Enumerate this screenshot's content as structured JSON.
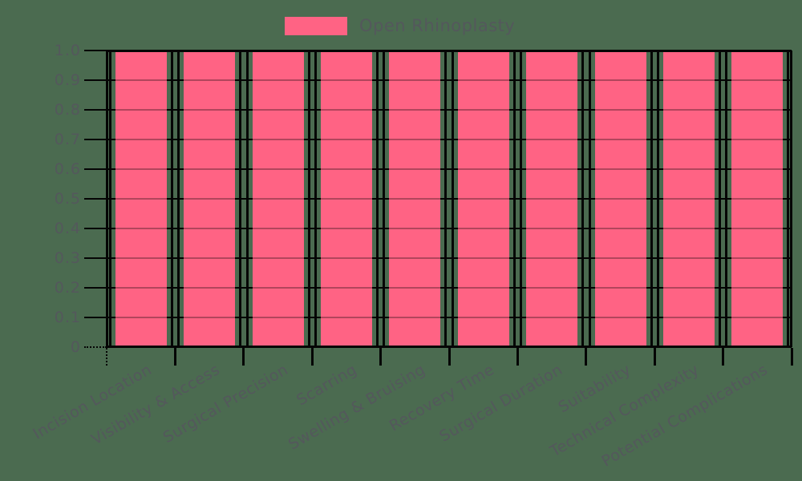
{
  "legend": {
    "position": "top-center",
    "items": [
      {
        "label": "Open Rhinoplasty",
        "color": "#FF6384"
      }
    ]
  },
  "chart_data": {
    "type": "bar",
    "title": "",
    "xlabel": "",
    "ylabel": "",
    "categories": [
      "Incision Location",
      "Visibility & Access",
      "Surgical Precision",
      "Scarring",
      "Swelling & Bruising",
      "Recovery Time",
      "Surgical Duration",
      "Suitability",
      "Technical Complexity",
      "Potential Complications"
    ],
    "series": [
      {
        "name": "Open Rhinoplasty",
        "color": "#FF6384",
        "values": [
          1.0,
          1.0,
          1.0,
          1.0,
          1.0,
          1.0,
          1.0,
          1.0,
          1.0,
          1.0
        ]
      }
    ],
    "ylim": [
      0,
      1.0
    ],
    "ytick_labels": [
      "1.0",
      "0.9",
      "0.8",
      "0.7",
      "0.6",
      "0.5",
      "0.4",
      "0.3",
      "0.2",
      "0.1",
      "0"
    ],
    "grid": true,
    "legend_position": "top-center",
    "colors": {
      "background": "#4B6B50",
      "bar": "#FF6384",
      "gridline": "#000000",
      "tick_text": "#54585C"
    }
  }
}
